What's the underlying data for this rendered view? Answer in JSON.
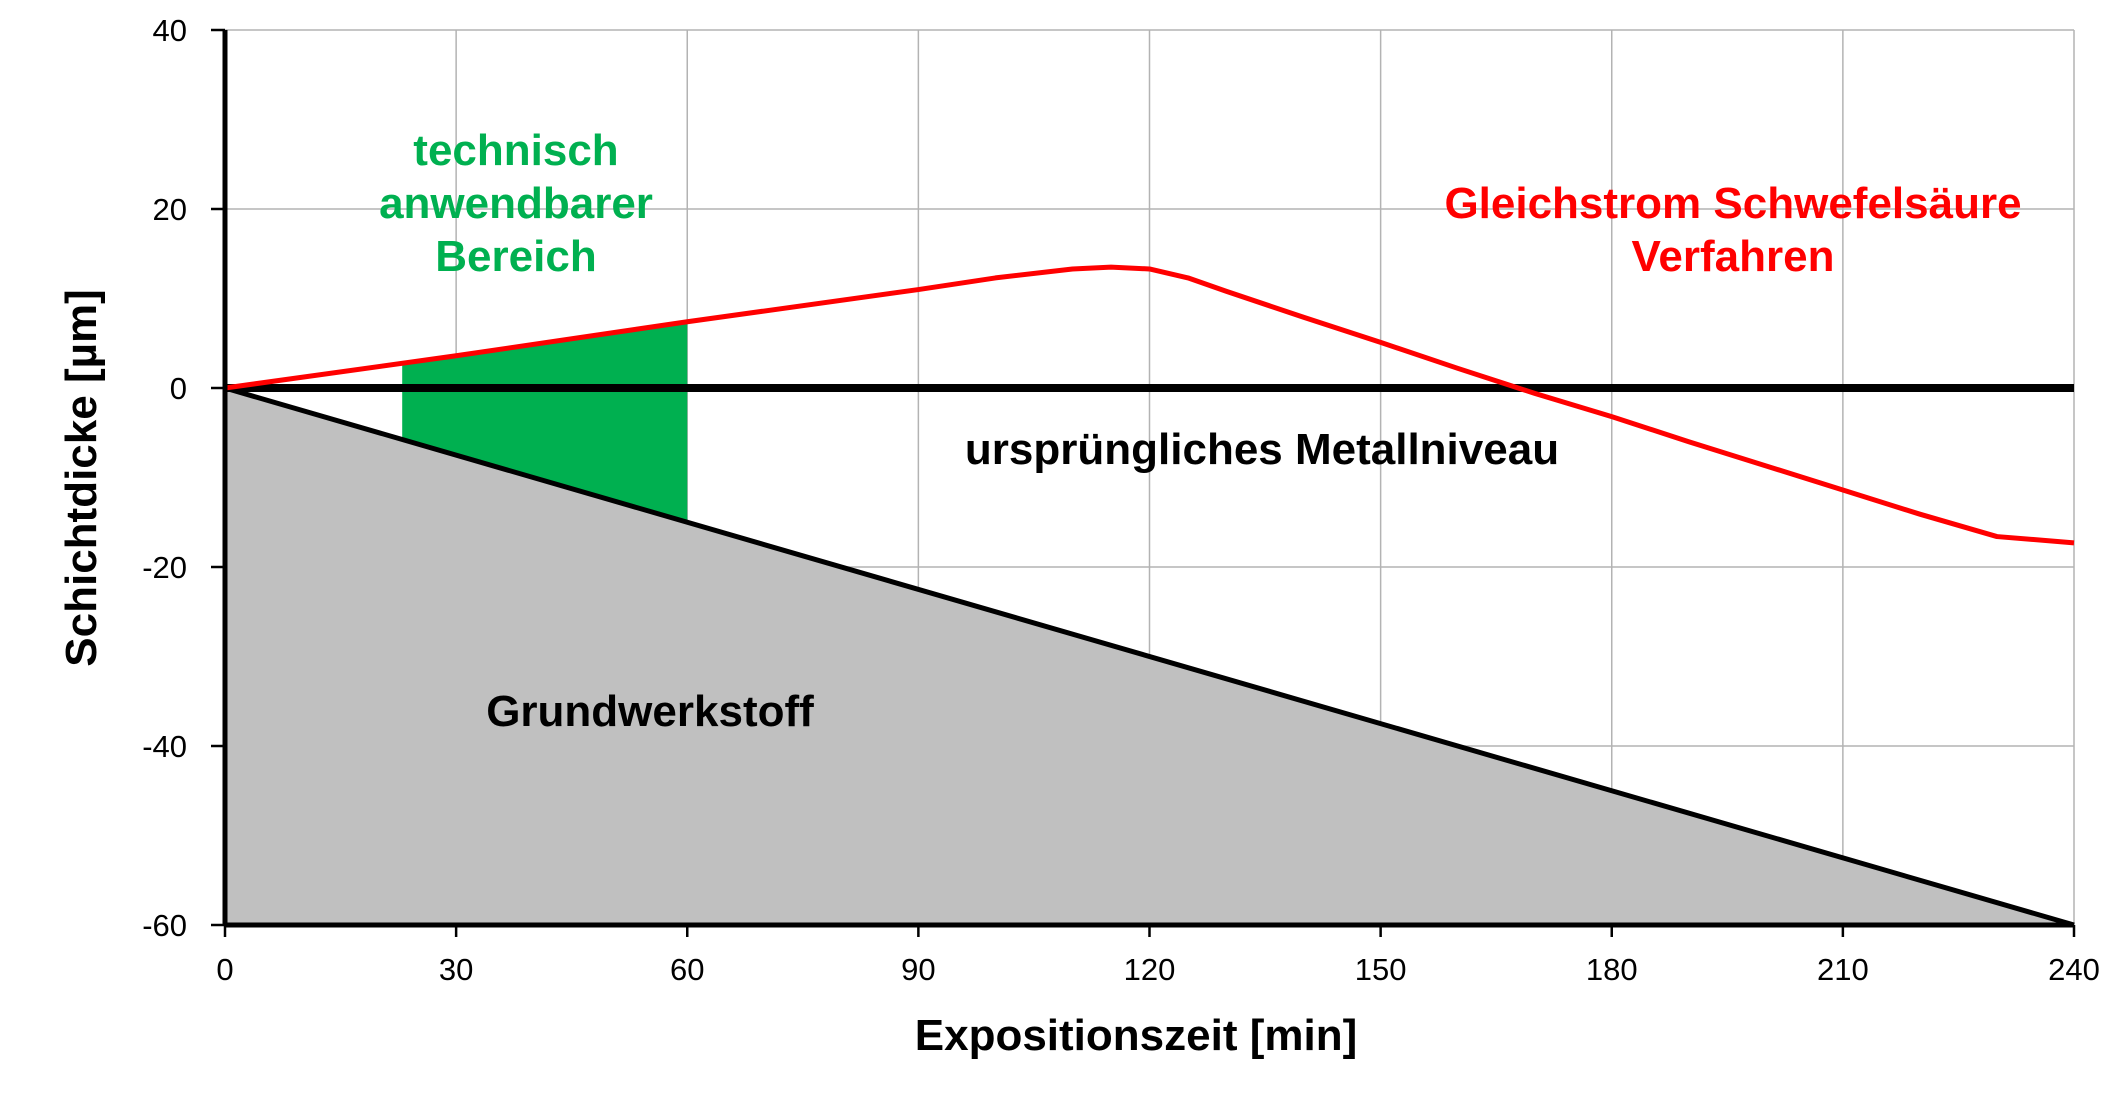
{
  "chart_data": {
    "type": "line",
    "xlabel": "Expositionszeit [min]",
    "ylabel": "Schichtdicke [µm]",
    "xlim": [
      0,
      240
    ],
    "ylim": [
      -60,
      40
    ],
    "xticks": [
      0,
      30,
      60,
      90,
      120,
      150,
      180,
      210,
      240
    ],
    "yticks": [
      -60,
      -40,
      -20,
      0,
      20,
      40
    ],
    "grid": true,
    "series": [
      {
        "name": "Gleichstrom Schwefelsäure Verfahren",
        "color": "#ff0000",
        "x": [
          0,
          30,
          60,
          90,
          100,
          110,
          115,
          120,
          125,
          130,
          140,
          150,
          160,
          170,
          180,
          190,
          200,
          210,
          220,
          230,
          240
        ],
        "y": [
          0,
          3.6,
          7.4,
          11.0,
          12.3,
          13.3,
          13.5,
          13.3,
          12.3,
          10.8,
          7.9,
          5.1,
          2.2,
          -0.6,
          -3.2,
          -6.0,
          -8.7,
          -11.4,
          -14.1,
          -16.6,
          -17.3
        ]
      },
      {
        "color": "#000000",
        "x": [
          0,
          240
        ],
        "y": [
          0,
          -60
        ]
      }
    ],
    "reference_line": {
      "y": 0,
      "label": "ursprüngliches Metallniveau",
      "color": "#000000"
    },
    "regions": [
      {
        "label": "Grundwerkstoff",
        "color": "#c0c0c0"
      },
      {
        "label": "technisch anwendbarer Bereich",
        "label_lines": [
          "technisch",
          "anwendbarer",
          "Bereich"
        ],
        "color": "#00b050",
        "x": [
          23,
          60
        ]
      }
    ],
    "annotations": {
      "process_lines": [
        "Gleichstrom Schwefelsäure",
        "Verfahren"
      ]
    }
  }
}
